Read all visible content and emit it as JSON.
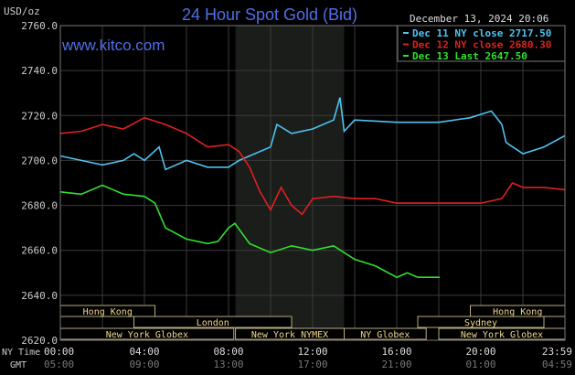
{
  "chart_data": {
    "type": "line",
    "title": "24 Hour Spot Gold (Bid)",
    "ylabel": "USD/oz",
    "website": "www.kitco.com",
    "timestamp": "December 13, 2024 20:06",
    "ylim": [
      2620,
      2760
    ],
    "xlim_hours": [
      0,
      24
    ],
    "yticks": [
      "2760.0",
      "2740.0",
      "2720.0",
      "2700.0",
      "2680.0",
      "2660.0",
      "2640.0",
      "2620.0"
    ],
    "ytick_values": [
      2760,
      2740,
      2720,
      2700,
      2680,
      2660,
      2640,
      2620
    ],
    "x_row_labels": {
      "ny": "NY Time",
      "gmt": "GMT"
    },
    "xticks_ny": [
      "00:00",
      "04:00",
      "08:00",
      "12:00",
      "16:00",
      "20:00",
      "23:59"
    ],
    "xticks_gmt": [
      "05:00",
      "09:00",
      "13:00",
      "17:00",
      "21:00",
      "01:00",
      "04:59"
    ],
    "xtick_hours": [
      0,
      4,
      8,
      12,
      16,
      20,
      24
    ],
    "grid": true,
    "shaded_hours": [
      8.33,
      13.5
    ],
    "sessions": [
      {
        "label": "Hong Kong",
        "row": 0,
        "start": 0,
        "end": 4.5
      },
      {
        "label": "Hong Kong",
        "row": 0,
        "start": 19.5,
        "end": 24
      },
      {
        "label": "London",
        "row": 1,
        "start": 3.5,
        "end": 11
      },
      {
        "label": "Sydney",
        "row": 1,
        "start": 17,
        "end": 23
      },
      {
        "label": "New York Globex",
        "row": 2,
        "start": 0,
        "end": 8.25
      },
      {
        "label": "New York NYMEX",
        "row": 2,
        "start": 8.33,
        "end": 13.5
      },
      {
        "label": "NY Globex",
        "row": 2,
        "start": 13.5,
        "end": 17.4
      },
      {
        "label": "New York Globex",
        "row": 2,
        "start": 18,
        "end": 24
      }
    ],
    "series": [
      {
        "name": "Dec 11 NY close 2717.50",
        "color": "#4fc3f0",
        "x": [
          0,
          1,
          2,
          3,
          3.5,
          4,
          4.7,
          5,
          6,
          7,
          8,
          8.5,
          9,
          10,
          10.3,
          11,
          12,
          13,
          13.3,
          13.5,
          14,
          16,
          18,
          19.5,
          20.5,
          21,
          21.2,
          22,
          23,
          23.99
        ],
        "y": [
          2702,
          2700,
          2698,
          2700,
          2703,
          2700,
          2706,
          2696,
          2700,
          2697,
          2697,
          2700,
          2702,
          2706,
          2716,
          2712,
          2714,
          2718,
          2728,
          2713,
          2718,
          2717,
          2717,
          2719,
          2722,
          2716,
          2708,
          2703,
          2706,
          2711
        ]
      },
      {
        "name": "Dec 12 NY close 2680.30",
        "color": "#e02020",
        "x": [
          0,
          1,
          2,
          3,
          4,
          5,
          6,
          7,
          8,
          8.5,
          9,
          9.5,
          10,
          10.5,
          11,
          11.5,
          12,
          13,
          14,
          15,
          16,
          18,
          19,
          20,
          21,
          21.5,
          22,
          23,
          23.99
        ],
        "y": [
          2712,
          2713,
          2716,
          2714,
          2719,
          2716,
          2712,
          2706,
          2707,
          2704,
          2697,
          2686,
          2678,
          2688,
          2680,
          2676,
          2683,
          2684,
          2683,
          2683,
          2681,
          2681,
          2681,
          2681,
          2683,
          2690,
          2688,
          2688,
          2687
        ]
      },
      {
        "name": "Dec 13 Last 2647.50",
        "color": "#30e030",
        "x": [
          0,
          1,
          2,
          3,
          4,
          4.5,
          5,
          6,
          7,
          7.5,
          8,
          8.3,
          9,
          10,
          11,
          12,
          13,
          14,
          15,
          16,
          16.5,
          17,
          18.05
        ],
        "y": [
          2686,
          2685,
          2689,
          2685,
          2684,
          2681,
          2670,
          2665,
          2663,
          2664,
          2670,
          2672,
          2663,
          2659,
          2662,
          2660,
          2662,
          2656,
          2653,
          2648,
          2650,
          2648,
          2648
        ]
      }
    ]
  }
}
